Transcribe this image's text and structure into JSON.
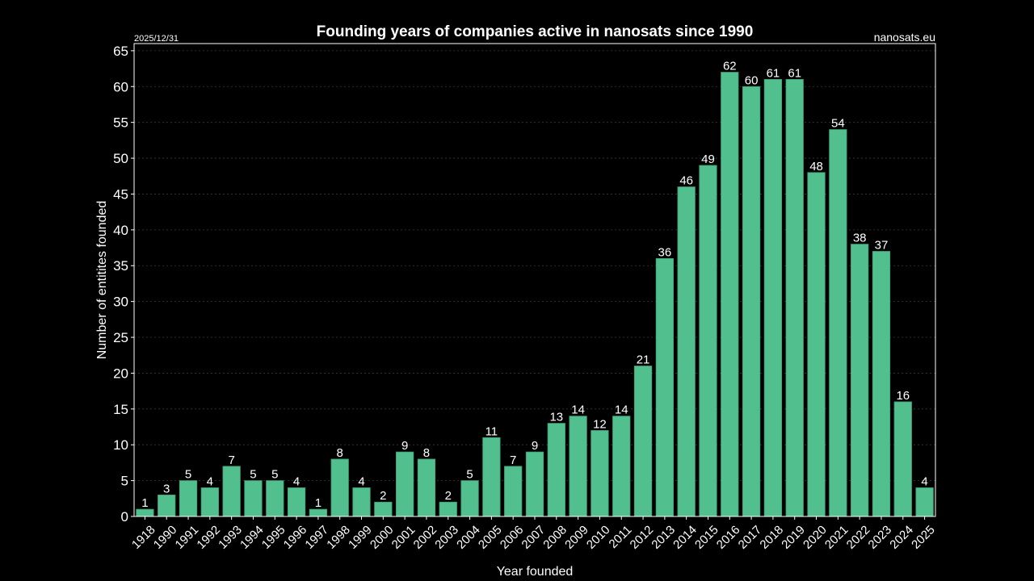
{
  "chart_data": {
    "type": "bar",
    "title": "Founding years of companies active in nanosats since 1990",
    "date": "2025/12/31",
    "source": "nanosats.eu",
    "xlabel": "Year founded",
    "ylabel": "Number of entitites founded",
    "ylim": [
      0,
      66
    ],
    "yticks": [
      0,
      5,
      10,
      15,
      20,
      25,
      30,
      35,
      40,
      45,
      50,
      55,
      60,
      65
    ],
    "grid": true,
    "categories": [
      "1918",
      "1990",
      "1991",
      "1992",
      "1993",
      "1994",
      "1995",
      "1996",
      "1997",
      "1998",
      "1999",
      "2000",
      "2001",
      "2002",
      "2003",
      "2004",
      "2005",
      "2006",
      "2007",
      "2008",
      "2009",
      "2010",
      "2011",
      "2012",
      "2013",
      "2014",
      "2015",
      "2016",
      "2017",
      "2018",
      "2019",
      "2020",
      "2021",
      "2022",
      "2023",
      "2024",
      "2025"
    ],
    "values": [
      1,
      3,
      5,
      4,
      7,
      5,
      5,
      4,
      1,
      8,
      4,
      2,
      9,
      8,
      2,
      5,
      11,
      7,
      9,
      13,
      14,
      12,
      14,
      21,
      36,
      46,
      49,
      62,
      60,
      61,
      61,
      48,
      54,
      38,
      37,
      16,
      4
    ],
    "bar_color": "#52bf8f",
    "bar_edge_color": "#3f9e74",
    "background": "#000000",
    "text_color": "#ffffff"
  }
}
